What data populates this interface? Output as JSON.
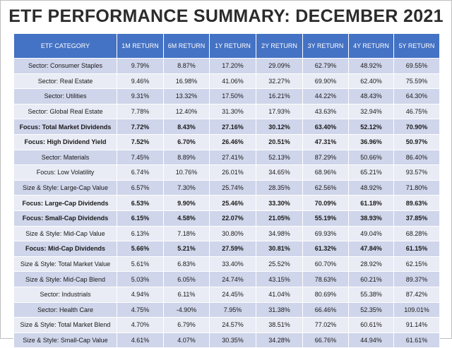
{
  "title": "ETF PERFORMANCE SUMMARY: DECEMBER 2021",
  "columns": [
    "ETF CATEGORY",
    "1M RETURN",
    "6M RETURN",
    "1Y RETURN",
    "2Y RETURN",
    "3Y RETURN",
    "4Y RETURN",
    "5Y RETURN"
  ],
  "rows": [
    {
      "bold": false,
      "cells": [
        "Sector: Consumer Staples",
        "9.79%",
        "8.87%",
        "17.20%",
        "29.09%",
        "62.79%",
        "48.92%",
        "69.55%"
      ]
    },
    {
      "bold": false,
      "cells": [
        "Sector: Real Estate",
        "9.46%",
        "16.98%",
        "41.06%",
        "32.27%",
        "69.90%",
        "62.40%",
        "75.59%"
      ]
    },
    {
      "bold": false,
      "cells": [
        "Sector: Utilities",
        "9.31%",
        "13.32%",
        "17.50%",
        "16.21%",
        "44.22%",
        "48.43%",
        "64.30%"
      ]
    },
    {
      "bold": false,
      "cells": [
        "Sector: Global Real Estate",
        "7.78%",
        "12.40%",
        "31.30%",
        "17.93%",
        "43.63%",
        "32.94%",
        "46.75%"
      ]
    },
    {
      "bold": true,
      "cells": [
        "Focus: Total Market Dividends",
        "7.72%",
        "8.43%",
        "27.16%",
        "30.12%",
        "63.40%",
        "52.12%",
        "70.90%"
      ]
    },
    {
      "bold": true,
      "cells": [
        "Focus: High Dividend Yield",
        "7.52%",
        "6.70%",
        "26.46%",
        "20.51%",
        "47.31%",
        "36.96%",
        "50.97%"
      ]
    },
    {
      "bold": false,
      "cells": [
        "Sector: Materials",
        "7.45%",
        "8.89%",
        "27.41%",
        "52.13%",
        "87.29%",
        "50.66%",
        "86.40%"
      ]
    },
    {
      "bold": false,
      "cells": [
        "Focus: Low Volatility",
        "6.74%",
        "10.76%",
        "26.01%",
        "34.65%",
        "68.96%",
        "65.21%",
        "93.57%"
      ]
    },
    {
      "bold": false,
      "cells": [
        "Size & Style: Large-Cap Value",
        "6.57%",
        "7.30%",
        "25.74%",
        "28.35%",
        "62.56%",
        "48.92%",
        "71.80%"
      ]
    },
    {
      "bold": true,
      "cells": [
        "Focus: Large-Cap Dividends",
        "6.53%",
        "9.90%",
        "25.46%",
        "33.30%",
        "70.09%",
        "61.18%",
        "89.63%"
      ]
    },
    {
      "bold": true,
      "cells": [
        "Focus: Small-Cap Dividends",
        "6.15%",
        "4.58%",
        "22.07%",
        "21.05%",
        "55.19%",
        "38.93%",
        "37.85%"
      ]
    },
    {
      "bold": false,
      "cells": [
        "Size & Style: Mid-Cap Value",
        "6.13%",
        "7.18%",
        "30.80%",
        "34.98%",
        "69.93%",
        "49.04%",
        "68.28%"
      ]
    },
    {
      "bold": true,
      "cells": [
        "Focus: Mid-Cap Dividends",
        "5.66%",
        "5.21%",
        "27.59%",
        "30.81%",
        "61.32%",
        "47.84%",
        "61.15%"
      ]
    },
    {
      "bold": false,
      "cells": [
        "Size & Style: Total Market Value",
        "5.61%",
        "6.83%",
        "33.40%",
        "25.52%",
        "60.70%",
        "28.92%",
        "62.15%"
      ]
    },
    {
      "bold": false,
      "cells": [
        "Size & Style: Mid-Cap Blend",
        "5.03%",
        "6.05%",
        "24.74%",
        "43.15%",
        "78.63%",
        "60.21%",
        "89.37%"
      ]
    },
    {
      "bold": false,
      "cells": [
        "Sector: Industrials",
        "4.94%",
        "6.11%",
        "24.45%",
        "41.04%",
        "80.69%",
        "55.38%",
        "87.42%"
      ]
    },
    {
      "bold": false,
      "cells": [
        "Sector: Health Care",
        "4.75%",
        "-4.90%",
        "7.95%",
        "31.38%",
        "66.46%",
        "52.35%",
        "109.01%"
      ]
    },
    {
      "bold": false,
      "cells": [
        "Size & Style: Total Market Blend",
        "4.70%",
        "6.79%",
        "24.57%",
        "38.51%",
        "77.02%",
        "60.61%",
        "91.14%"
      ]
    },
    {
      "bold": false,
      "cells": [
        "Size & Style: Small-Cap Value",
        "4.61%",
        "4.07%",
        "30.35%",
        "34.28%",
        "66.76%",
        "44.94%",
        "61.61%"
      ]
    }
  ]
}
